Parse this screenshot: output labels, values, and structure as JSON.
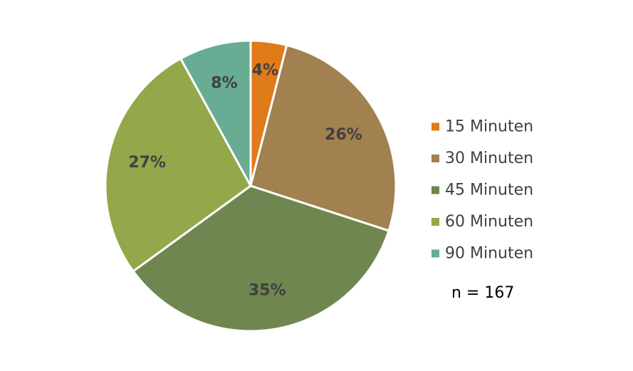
{
  "chart_data": {
    "type": "pie",
    "title": "",
    "categories": [
      "15 Minuten",
      "30 Minuten",
      "45 Minuten",
      "60 Minuten",
      "90 Minuten"
    ],
    "values": [
      4,
      26,
      35,
      27,
      8
    ],
    "data_labels": [
      "4%",
      "26%",
      "35%",
      "27%",
      "8%"
    ],
    "colors": [
      "#e07b1a",
      "#a0814f",
      "#6f8650",
      "#93a84a",
      "#67ac93"
    ],
    "start_angle": "12 o'clock, clockwise",
    "legend_position": "right",
    "annotation": "n = 167"
  }
}
